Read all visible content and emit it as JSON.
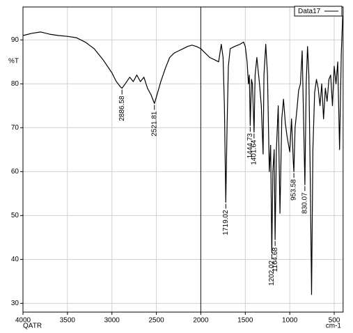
{
  "chart_data": {
    "type": "line",
    "y_label": "%T",
    "x_label": "cm-1",
    "x_note": "QATR",
    "x": [
      4000,
      3900,
      3800,
      3700,
      3600,
      3500,
      3400,
      3300,
      3200,
      3100,
      3000,
      2950,
      2900,
      2886.58,
      2850,
      2800,
      2760,
      2720,
      2680,
      2640,
      2600,
      2560,
      2521.81,
      2500,
      2450,
      2400,
      2350,
      2300,
      2250,
      2200,
      2150,
      2100,
      2050,
      2000,
      1950,
      1900,
      1850,
      1800,
      1770,
      1750,
      1735,
      1719.02,
      1705,
      1690,
      1670,
      1620,
      1560,
      1520,
      1500,
      1480,
      1465,
      1455,
      1444.73,
      1430,
      1420,
      1401.64,
      1390,
      1370,
      1340,
      1320,
      1300,
      1290,
      1270,
      1250,
      1230,
      1215,
      1202.02,
      1190,
      1175,
      1164.68,
      1150,
      1130,
      1110,
      1090,
      1070,
      1050,
      1030,
      1000,
      980,
      960,
      953.58,
      940,
      920,
      900,
      880,
      860,
      845,
      830.07,
      815,
      800,
      785,
      770,
      755,
      740,
      720,
      700,
      680,
      660,
      640,
      620,
      600,
      580,
      560,
      540,
      520,
      500,
      480,
      460,
      440,
      420,
      405
    ],
    "series": [
      {
        "name": "Data17",
        "color": "#000000",
        "values": [
          91.0,
          91.5,
          91.8,
          91.3,
          91.0,
          90.8,
          90.5,
          89.5,
          88.0,
          85.5,
          82.5,
          80.5,
          79.2,
          79.0,
          80.0,
          81.5,
          80.5,
          82.0,
          80.5,
          81.5,
          79.0,
          77.5,
          75.5,
          77.0,
          80.5,
          83.5,
          86.0,
          87.0,
          87.5,
          88.0,
          88.5,
          88.8,
          88.5,
          88.0,
          87.0,
          86.0,
          85.5,
          85.0,
          89.0,
          86.0,
          75.0,
          53.0,
          70.0,
          84.0,
          88.0,
          88.5,
          89.0,
          89.5,
          88.5,
          85.0,
          80.0,
          82.0,
          70.5,
          81.0,
          80.0,
          69.0,
          82.0,
          86.0,
          80.0,
          75.0,
          64.0,
          82.0,
          89.0,
          82.0,
          60.0,
          66.0,
          41.5,
          60.0,
          65.0,
          44.5,
          65.0,
          75.0,
          50.5,
          72.0,
          76.5,
          71.0,
          68.0,
          64.5,
          72.0,
          62.0,
          60.0,
          70.0,
          74.0,
          78.5,
          80.0,
          87.5,
          72.0,
          57.0,
          80.0,
          88.5,
          82.0,
          60.0,
          32.0,
          65.0,
          78.0,
          81.0,
          79.0,
          75.0,
          80.0,
          72.0,
          79.0,
          76.0,
          81.0,
          82.0,
          75.0,
          84.0,
          80.0,
          85.0,
          65.0,
          87.0,
          95.5
        ]
      }
    ],
    "annotations": [
      {
        "label": "2886.58",
        "x": 2886.58,
        "y": 79.0
      },
      {
        "label": "2521.81",
        "x": 2521.81,
        "y": 75.5
      },
      {
        "label": "1719.02",
        "x": 1719.02,
        "y": 53.0
      },
      {
        "label": "1444.73",
        "x": 1444.73,
        "y": 70.5
      },
      {
        "label": "1401.64",
        "x": 1401.64,
        "y": 69.0
      },
      {
        "label": "1202.02",
        "x": 1202.02,
        "y": 41.5
      },
      {
        "label": "1164.68",
        "x": 1164.68,
        "y": 44.5
      },
      {
        "label": "953.58",
        "x": 953.58,
        "y": 60.0
      },
      {
        "label": "830.07",
        "x": 830.07,
        "y": 57.0
      }
    ],
    "xlim": [
      4000,
      400
    ],
    "ylim": [
      28,
      97.5
    ],
    "xticks": [
      4000,
      3500,
      3000,
      2500,
      2000,
      1500,
      1000,
      500
    ],
    "yticks": [
      30,
      40,
      50,
      60,
      70,
      80,
      90
    ],
    "xsplit": 2000,
    "grid": true,
    "legend": "top-right"
  }
}
